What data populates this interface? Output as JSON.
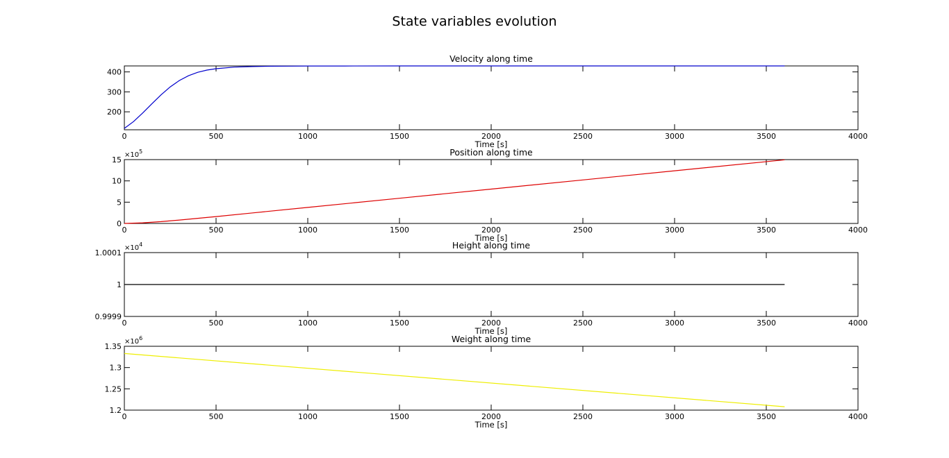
{
  "figure": {
    "title": "State variables evolution"
  },
  "chart_data": [
    {
      "type": "line",
      "title": "Velocity along time",
      "xlabel": "Time [s]",
      "ylabel": "",
      "xlim": [
        0,
        4000
      ],
      "ylim": [
        110,
        430
      ],
      "xticks": [
        0,
        500,
        1000,
        1500,
        2000,
        2500,
        3000,
        3500,
        4000
      ],
      "xtick_labels": [
        "0",
        "500",
        "1000",
        "1500",
        "2000",
        "2500",
        "3000",
        "3500",
        "4000"
      ],
      "yticks": [
        200,
        300,
        400
      ],
      "ytick_labels": [
        "200",
        "300",
        "400"
      ],
      "exponent_label": "",
      "grid": false,
      "series": [
        {
          "color": "#0000cc",
          "x": [
            0,
            50,
            100,
            150,
            200,
            250,
            300,
            350,
            400,
            450,
            500,
            600,
            700,
            800,
            900,
            1000,
            1200,
            1500,
            2000,
            2500,
            3000,
            3600
          ],
          "y": [
            117,
            151,
            194,
            240,
            285,
            325,
            357,
            381,
            398,
            409,
            416,
            424,
            427,
            428.5,
            429,
            429.5,
            429.8,
            430,
            430,
            430,
            430,
            430
          ]
        }
      ]
    },
    {
      "type": "line",
      "title": "Position along time",
      "xlabel": "Time [s]",
      "ylabel": "",
      "xlim": [
        0,
        4000
      ],
      "ylim": [
        0,
        15
      ],
      "xticks": [
        0,
        500,
        1000,
        1500,
        2000,
        2500,
        3000,
        3500,
        4000
      ],
      "xtick_labels": [
        "0",
        "500",
        "1000",
        "1500",
        "2000",
        "2500",
        "3000",
        "3500",
        "4000"
      ],
      "yticks": [
        0,
        5,
        10,
        15
      ],
      "ytick_labels": [
        "0",
        "5",
        "10",
        "15"
      ],
      "exponent_label": "5",
      "grid": false,
      "series": [
        {
          "color": "#dd0000",
          "x": [
            0,
            100,
            200,
            300,
            400,
            500,
            700,
            1000,
            1500,
            2000,
            2500,
            3000,
            3600
          ],
          "y": [
            0,
            0.15,
            0.42,
            0.8,
            1.2,
            1.62,
            2.48,
            3.77,
            5.92,
            8.07,
            10.22,
            12.37,
            14.95
          ]
        }
      ]
    },
    {
      "type": "line",
      "title": "Height along time",
      "xlabel": "Time [s]",
      "ylabel": "",
      "xlim": [
        0,
        4000
      ],
      "ylim": [
        0.9999,
        1.0001
      ],
      "xticks": [
        0,
        500,
        1000,
        1500,
        2000,
        2500,
        3000,
        3500,
        4000
      ],
      "xtick_labels": [
        "0",
        "500",
        "1000",
        "1500",
        "2000",
        "2500",
        "3000",
        "3500",
        "4000"
      ],
      "yticks": [
        0.9999,
        1,
        1.0001
      ],
      "ytick_labels": [
        "0.9999",
        "1",
        "1.0001"
      ],
      "exponent_label": "4",
      "grid": false,
      "series": [
        {
          "color": "#000000",
          "x": [
            0,
            3600
          ],
          "y": [
            1,
            1
          ]
        }
      ]
    },
    {
      "type": "line",
      "title": "Weight along time",
      "xlabel": "Time [s]",
      "ylabel": "",
      "xlim": [
        0,
        4000
      ],
      "ylim": [
        1.2,
        1.35
      ],
      "xticks": [
        0,
        500,
        1000,
        1500,
        2000,
        2500,
        3000,
        3500,
        4000
      ],
      "xtick_labels": [
        "0",
        "500",
        "1000",
        "1500",
        "2000",
        "2500",
        "3000",
        "3500",
        "4000"
      ],
      "yticks": [
        1.2,
        1.25,
        1.3,
        1.35
      ],
      "ytick_labels": [
        "1.2",
        "1.25",
        "1.3",
        "1.35"
      ],
      "exponent_label": "6",
      "grid": false,
      "series": [
        {
          "color": "#eeee00",
          "x": [
            0,
            3600
          ],
          "y": [
            1.333,
            1.208
          ]
        }
      ]
    }
  ]
}
